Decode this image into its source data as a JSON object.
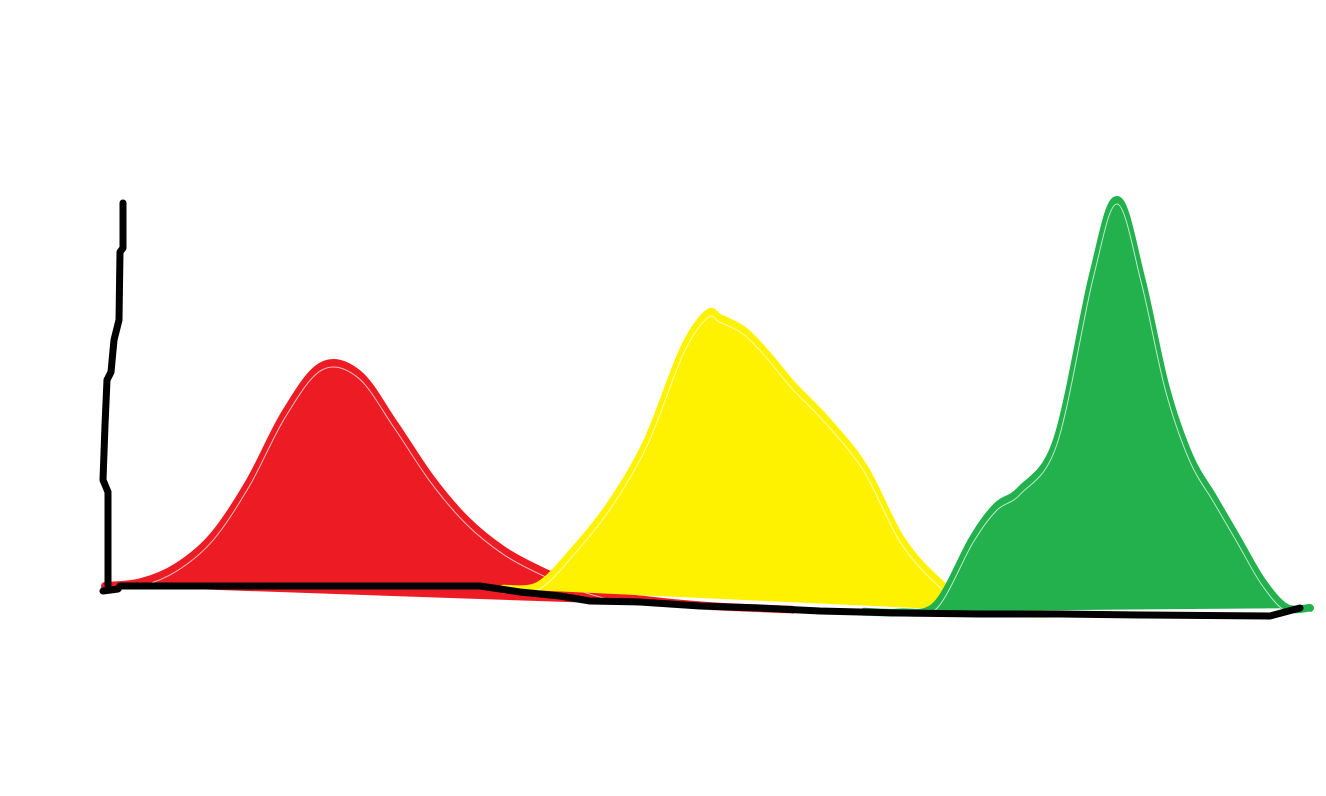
{
  "chart_data": {
    "type": "area",
    "title": "",
    "xlabel": "",
    "ylabel": "",
    "xlim": [
      0,
      100
    ],
    "ylim": [
      0,
      100
    ],
    "grid": false,
    "legend": "none",
    "series": [
      {
        "color": "#ed1c24",
        "x": [
          0,
          3,
          6,
          9,
          12,
          15,
          18,
          21,
          24,
          27,
          30,
          33,
          36,
          39,
          42,
          45,
          48,
          51,
          54,
          57
        ],
        "y": [
          0,
          1,
          5,
          13,
          27,
          45,
          57,
          55,
          42,
          28,
          17,
          10,
          6,
          3,
          1,
          0.5,
          0.2,
          0,
          0,
          0
        ]
      },
      {
        "color": "#fff200",
        "x": [
          33,
          36,
          39,
          42,
          45,
          48,
          50,
          51,
          53,
          55,
          57,
          60,
          63,
          66,
          69,
          72,
          75,
          78
        ],
        "y": [
          0,
          2,
          12,
          24,
          40,
          63,
          72,
          71,
          68,
          62,
          55,
          46,
          35,
          18,
          8,
          2,
          0.5,
          0
        ]
      },
      {
        "color": "#22b14c",
        "x": [
          63,
          66,
          69,
          72,
          74,
          76,
          79,
          82,
          84,
          86,
          88,
          90,
          92,
          94,
          96,
          98,
          100
        ],
        "y": [
          0,
          0,
          2,
          18,
          26,
          30,
          42,
          82,
          100,
          81,
          55,
          38,
          28,
          18,
          8,
          1,
          0
        ]
      }
    ]
  }
}
